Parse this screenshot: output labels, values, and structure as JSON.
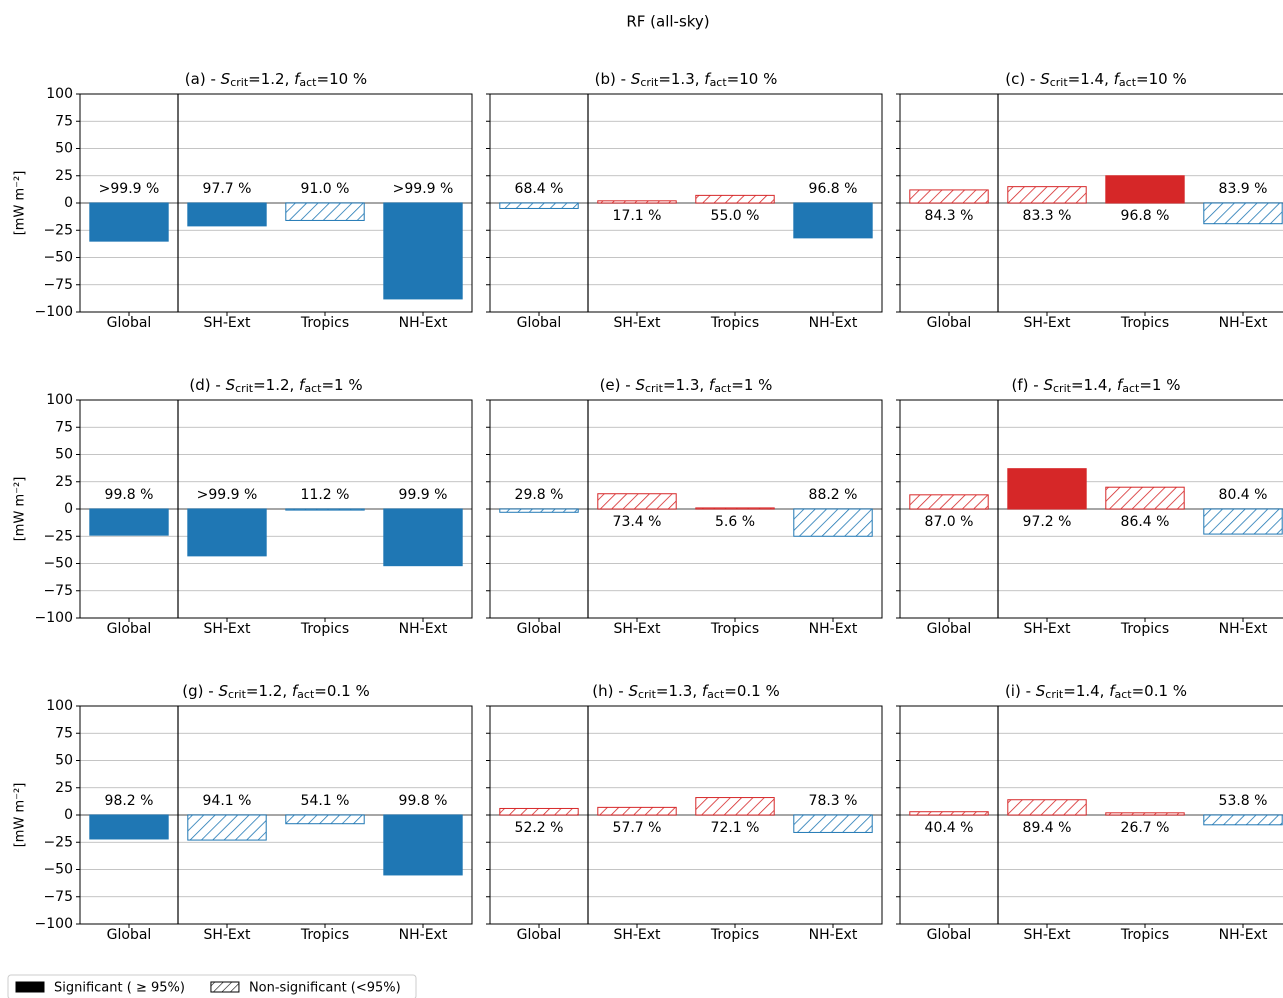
{
  "title": "RF (all-sky)",
  "legend": [
    {
      "label": "Significant ( ≥ 95%)",
      "hatched": false
    },
    {
      "label": "Non-significant (<95%)",
      "hatched": true
    }
  ],
  "chart_data": [
    {
      "type": "bar",
      "title_parts": [
        {
          "text": "(a) - ",
          "style": "normal"
        },
        {
          "text": "S",
          "style": "italic"
        },
        {
          "text": "crit",
          "style": "sub"
        },
        {
          "text": "=1.2, ",
          "style": "normal"
        },
        {
          "text": "f",
          "style": "italic"
        },
        {
          "text": "act",
          "style": "sub"
        },
        {
          "text": "=10 %",
          "style": "normal"
        }
      ],
      "ylabel": "[mW m⁻²]",
      "show_ytick_labels": true,
      "categories": [
        "Global",
        "SH-Ext",
        "Tropics",
        "NH-Ext"
      ],
      "values": [
        -35,
        -21,
        -16,
        -88
      ],
      "significant": [
        true,
        true,
        false,
        true
      ],
      "labels": [
        ">99.9 %",
        "97.7 %",
        "91.0 %",
        ">99.9 %"
      ],
      "pos_color": "#d62728",
      "neg_color": "#1f77b4",
      "ylim": [
        -100,
        100
      ],
      "yticks": [
        {
          "value": -100,
          "label": "−100"
        },
        {
          "value": -75,
          "label": "−75"
        },
        {
          "value": -50,
          "label": "−50"
        },
        {
          "value": -25,
          "label": "−25"
        },
        0,
        25,
        50,
        75,
        100
      ],
      "grid": true
    },
    {
      "type": "bar",
      "title_parts": [
        {
          "text": "(b) - ",
          "style": "normal"
        },
        {
          "text": "S",
          "style": "italic"
        },
        {
          "text": "crit",
          "style": "sub"
        },
        {
          "text": "=1.3, ",
          "style": "normal"
        },
        {
          "text": "f",
          "style": "italic"
        },
        {
          "text": "act",
          "style": "sub"
        },
        {
          "text": "=10 %",
          "style": "normal"
        }
      ],
      "show_ytick_labels": false,
      "categories": [
        "Global",
        "SH-Ext",
        "Tropics",
        "NH-Ext"
      ],
      "values": [
        -5,
        2,
        7,
        -32
      ],
      "significant": [
        false,
        false,
        false,
        true
      ],
      "labels": [
        "68.4 %",
        "17.1 %",
        "55.0 %",
        "96.8 %"
      ],
      "pos_color": "#d62728",
      "neg_color": "#1f77b4",
      "ylim": [
        -100,
        100
      ],
      "yticks": [
        -100,
        -75,
        -50,
        -25,
        0,
        25,
        50,
        75,
        100
      ],
      "grid": true
    },
    {
      "type": "bar",
      "title_parts": [
        {
          "text": "(c) - ",
          "style": "normal"
        },
        {
          "text": "S",
          "style": "italic"
        },
        {
          "text": "crit",
          "style": "sub"
        },
        {
          "text": "=1.4, ",
          "style": "normal"
        },
        {
          "text": "f",
          "style": "italic"
        },
        {
          "text": "act",
          "style": "sub"
        },
        {
          "text": "=10 %",
          "style": "normal"
        }
      ],
      "show_ytick_labels": false,
      "categories": [
        "Global",
        "SH-Ext",
        "Tropics",
        "NH-Ext"
      ],
      "values": [
        12,
        15,
        25,
        -19
      ],
      "significant": [
        false,
        false,
        true,
        false
      ],
      "labels": [
        "84.3 %",
        "83.3 %",
        "96.8 %",
        "83.9 %"
      ],
      "pos_color": "#d62728",
      "neg_color": "#1f77b4",
      "ylim": [
        -100,
        100
      ],
      "yticks": [
        -100,
        -75,
        -50,
        -25,
        0,
        25,
        50,
        75,
        100
      ],
      "grid": true
    },
    {
      "type": "bar",
      "title_parts": [
        {
          "text": "(d) - ",
          "style": "normal"
        },
        {
          "text": "S",
          "style": "italic"
        },
        {
          "text": "crit",
          "style": "sub"
        },
        {
          "text": "=1.2, ",
          "style": "normal"
        },
        {
          "text": "f",
          "style": "italic"
        },
        {
          "text": "act",
          "style": "sub"
        },
        {
          "text": "=1 %",
          "style": "normal"
        }
      ],
      "ylabel": "[mW m⁻²]",
      "show_ytick_labels": true,
      "categories": [
        "Global",
        "SH-Ext",
        "Tropics",
        "NH-Ext"
      ],
      "values": [
        -24,
        -43,
        -1,
        -52
      ],
      "significant": [
        true,
        true,
        false,
        true
      ],
      "labels": [
        "99.8 %",
        ">99.9 %",
        "11.2 %",
        "99.9 %"
      ],
      "pos_color": "#d62728",
      "neg_color": "#1f77b4",
      "ylim": [
        -100,
        100
      ],
      "yticks": [
        {
          "value": -100,
          "label": "−100"
        },
        {
          "value": -75,
          "label": "−75"
        },
        {
          "value": -50,
          "label": "−50"
        },
        {
          "value": -25,
          "label": "−25"
        },
        0,
        25,
        50,
        75,
        100
      ],
      "grid": true
    },
    {
      "type": "bar",
      "title_parts": [
        {
          "text": "(e) - ",
          "style": "normal"
        },
        {
          "text": "S",
          "style": "italic"
        },
        {
          "text": "crit",
          "style": "sub"
        },
        {
          "text": "=1.3, ",
          "style": "normal"
        },
        {
          "text": "f",
          "style": "italic"
        },
        {
          "text": "act",
          "style": "sub"
        },
        {
          "text": "=1 %",
          "style": "normal"
        }
      ],
      "show_ytick_labels": false,
      "categories": [
        "Global",
        "SH-Ext",
        "Tropics",
        "NH-Ext"
      ],
      "values": [
        -3,
        14,
        1,
        -25
      ],
      "significant": [
        false,
        false,
        false,
        false
      ],
      "labels": [
        "29.8 %",
        "73.4 %",
        "5.6 %",
        "88.2 %"
      ],
      "pos_color": "#d62728",
      "neg_color": "#1f77b4",
      "ylim": [
        -100,
        100
      ],
      "yticks": [
        -100,
        -75,
        -50,
        -25,
        0,
        25,
        50,
        75,
        100
      ],
      "grid": true
    },
    {
      "type": "bar",
      "title_parts": [
        {
          "text": "(f) - ",
          "style": "normal"
        },
        {
          "text": "S",
          "style": "italic"
        },
        {
          "text": "crit",
          "style": "sub"
        },
        {
          "text": "=1.4, ",
          "style": "normal"
        },
        {
          "text": "f",
          "style": "italic"
        },
        {
          "text": "act",
          "style": "sub"
        },
        {
          "text": "=1 %",
          "style": "normal"
        }
      ],
      "show_ytick_labels": false,
      "categories": [
        "Global",
        "SH-Ext",
        "Tropics",
        "NH-Ext"
      ],
      "values": [
        13,
        37,
        20,
        -23
      ],
      "significant": [
        false,
        true,
        false,
        false
      ],
      "labels": [
        "87.0 %",
        "97.2 %",
        "86.4 %",
        "80.4 %"
      ],
      "pos_color": "#d62728",
      "neg_color": "#1f77b4",
      "ylim": [
        -100,
        100
      ],
      "yticks": [
        -100,
        -75,
        -50,
        -25,
        0,
        25,
        50,
        75,
        100
      ],
      "grid": true
    },
    {
      "type": "bar",
      "title_parts": [
        {
          "text": "(g) - ",
          "style": "normal"
        },
        {
          "text": "S",
          "style": "italic"
        },
        {
          "text": "crit",
          "style": "sub"
        },
        {
          "text": "=1.2, ",
          "style": "normal"
        },
        {
          "text": "f",
          "style": "italic"
        },
        {
          "text": "act",
          "style": "sub"
        },
        {
          "text": "=0.1 %",
          "style": "normal"
        }
      ],
      "ylabel": "[mW m⁻²]",
      "show_ytick_labels": true,
      "categories": [
        "Global",
        "SH-Ext",
        "Tropics",
        "NH-Ext"
      ],
      "values": [
        -22,
        -23,
        -8,
        -55
      ],
      "significant": [
        true,
        false,
        false,
        true
      ],
      "labels": [
        "98.2 %",
        "94.1 %",
        "54.1 %",
        "99.8 %"
      ],
      "pos_color": "#d62728",
      "neg_color": "#1f77b4",
      "ylim": [
        -100,
        100
      ],
      "yticks": [
        {
          "value": -100,
          "label": "−100"
        },
        {
          "value": -75,
          "label": "−75"
        },
        {
          "value": -50,
          "label": "−50"
        },
        {
          "value": -25,
          "label": "−25"
        },
        0,
        25,
        50,
        75,
        100
      ],
      "grid": true
    },
    {
      "type": "bar",
      "title_parts": [
        {
          "text": "(h) - ",
          "style": "normal"
        },
        {
          "text": "S",
          "style": "italic"
        },
        {
          "text": "crit",
          "style": "sub"
        },
        {
          "text": "=1.3, ",
          "style": "normal"
        },
        {
          "text": "f",
          "style": "italic"
        },
        {
          "text": "act",
          "style": "sub"
        },
        {
          "text": "=0.1 %",
          "style": "normal"
        }
      ],
      "show_ytick_labels": false,
      "categories": [
        "Global",
        "SH-Ext",
        "Tropics",
        "NH-Ext"
      ],
      "values": [
        6,
        7,
        16,
        -16
      ],
      "significant": [
        false,
        false,
        false,
        false
      ],
      "labels": [
        "52.2 %",
        "57.7 %",
        "72.1 %",
        "78.3 %"
      ],
      "pos_color": "#d62728",
      "neg_color": "#1f77b4",
      "ylim": [
        -100,
        100
      ],
      "yticks": [
        -100,
        -75,
        -50,
        -25,
        0,
        25,
        50,
        75,
        100
      ],
      "grid": true
    },
    {
      "type": "bar",
      "title_parts": [
        {
          "text": "(i) - ",
          "style": "normal"
        },
        {
          "text": "S",
          "style": "italic"
        },
        {
          "text": "crit",
          "style": "sub"
        },
        {
          "text": "=1.4, ",
          "style": "normal"
        },
        {
          "text": "f",
          "style": "italic"
        },
        {
          "text": "act",
          "style": "sub"
        },
        {
          "text": "=0.1 %",
          "style": "normal"
        }
      ],
      "show_ytick_labels": false,
      "categories": [
        "Global",
        "SH-Ext",
        "Tropics",
        "NH-Ext"
      ],
      "values": [
        3,
        14,
        2,
        -9
      ],
      "significant": [
        false,
        false,
        false,
        false
      ],
      "labels": [
        "40.4 %",
        "89.4 %",
        "26.7 %",
        "53.8 %"
      ],
      "pos_color": "#d62728",
      "neg_color": "#1f77b4",
      "ylim": [
        -100,
        100
      ],
      "yticks": [
        -100,
        -75,
        -50,
        -25,
        0,
        25,
        50,
        75,
        100
      ],
      "grid": true
    }
  ]
}
